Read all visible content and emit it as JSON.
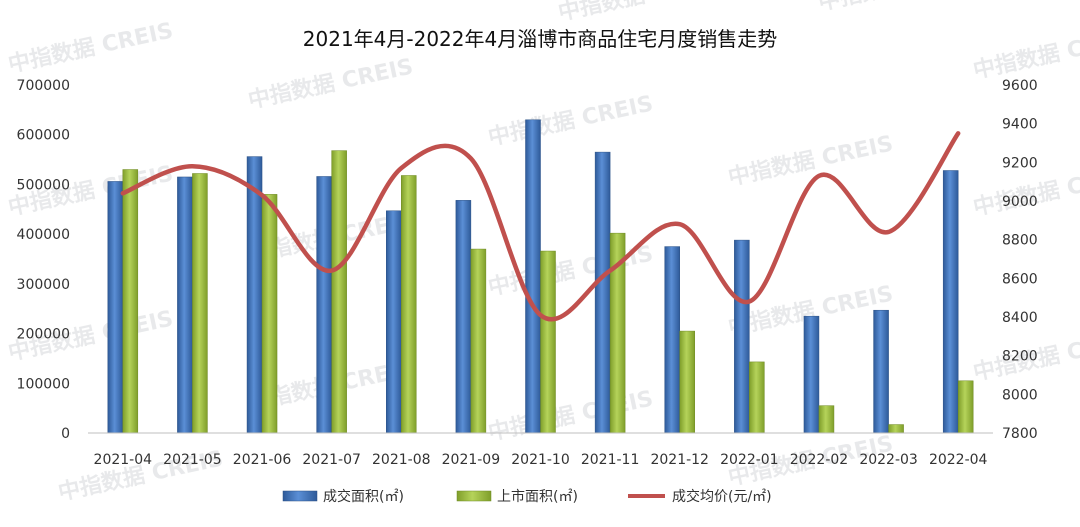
{
  "title": "2021年4月-2022年4月淄博市商品住宅月度销售走势",
  "watermark": "中指数据 CREIS",
  "colors": {
    "series1": "#3f73b7",
    "series2": "#9bbb3c",
    "line": "#c0504d"
  },
  "chart_data": {
    "type": "bar",
    "title": "2021年4月-2022年4月淄博市商品住宅月度销售走势",
    "categories": [
      "2021-04",
      "2021-05",
      "2021-06",
      "2021-07",
      "2021-08",
      "2021-09",
      "2021-10",
      "2021-11",
      "2021-12",
      "2022-01",
      "2022-02",
      "2022-03",
      "2022-04"
    ],
    "series": [
      {
        "name": "成交面积(㎡)",
        "type": "bar",
        "axis": "left",
        "values": [
          506000,
          515000,
          556000,
          516000,
          447000,
          468000,
          630000,
          565000,
          375000,
          388000,
          235000,
          247000,
          528000
        ]
      },
      {
        "name": "上市面积(㎡)",
        "type": "bar",
        "axis": "left",
        "values": [
          530000,
          522000,
          480000,
          568000,
          518000,
          370000,
          366000,
          402000,
          205000,
          143000,
          55000,
          17000,
          105000
        ]
      },
      {
        "name": "成交均价(元/㎡)",
        "type": "line",
        "axis": "right",
        "values": [
          9040,
          9180,
          9030,
          8640,
          9170,
          9220,
          8410,
          8640,
          8880,
          8480,
          9130,
          8840,
          9350
        ]
      }
    ],
    "y_left": {
      "min": 0,
      "max": 700000,
      "ticks": [
        "0",
        "100000",
        "200000",
        "300000",
        "400000",
        "500000",
        "600000",
        "700000"
      ]
    },
    "y_right": {
      "min": 7800,
      "max": 9600,
      "ticks": [
        "7800",
        "8000",
        "8200",
        "8400",
        "8600",
        "8800",
        "9000",
        "9200",
        "9400",
        "9600"
      ]
    },
    "grid": false,
    "legend_position": "bottom"
  }
}
